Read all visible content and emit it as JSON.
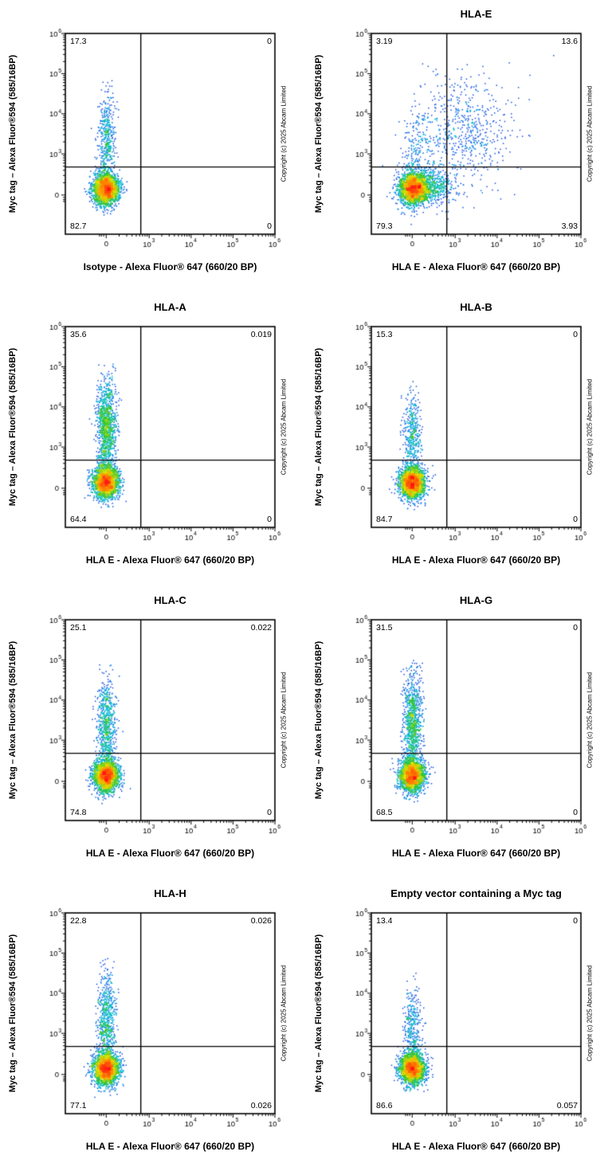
{
  "copyright": "Copyright (c) 2025 Abcam Limited",
  "axes": {
    "scale": "biexponential",
    "gate_x_u": 0.36,
    "gate_y_u": 0.335,
    "zero_u": 0.195,
    "tick_labels": [
      {
        "u": 0.195,
        "text": "0"
      },
      {
        "u": 0.4,
        "base": "10",
        "exp": "3"
      },
      {
        "u": 0.6,
        "base": "10",
        "exp": "4"
      },
      {
        "u": 0.8,
        "base": "10",
        "exp": "5"
      },
      {
        "u": 1.0,
        "base": "10",
        "exp": "6"
      }
    ]
  },
  "chart_data": [
    {
      "type": "scatter",
      "title": "",
      "xlabel": "Isotype - Alexa Fluor® 647 (660/20 BP)",
      "ylabel": "Myc tag – Alexa Fluor®594 (585/16BP)",
      "quadrants": {
        "ul": "17.3",
        "ur": "0",
        "ll": "82.7",
        "lr": "0"
      },
      "seed": 101,
      "populations": [
        {
          "n": 2300,
          "cx": 0.195,
          "cy": 0.225,
          "sx": 0.03,
          "sy": 0.04
        },
        {
          "n": 430,
          "cx": 0.197,
          "cy": 0.46,
          "sx": 0.021,
          "sy": 0.115,
          "ymin": 0.29,
          "ymax": 0.77
        }
      ]
    },
    {
      "type": "scatter",
      "title": "HLA-E",
      "xlabel": "HLA E - Alexa Fluor® 647 (660/20 BP)",
      "ylabel": "Myc tag – Alexa Fluor®594 (585/16BP)",
      "quadrants": {
        "ul": "3.19",
        "ur": "13.6",
        "ll": "79.3",
        "lr": "3.93"
      },
      "seed": 102,
      "populations": [
        {
          "n": 2100,
          "cx": 0.2,
          "cy": 0.225,
          "sx": 0.034,
          "sy": 0.04
        },
        {
          "n": 700,
          "cx": 0.27,
          "cy": 0.235,
          "sx": 0.065,
          "sy": 0.045
        },
        {
          "n": 660,
          "cx": 0.43,
          "cy": 0.52,
          "sx": 0.115,
          "sy": 0.135
        },
        {
          "n": 130,
          "cx": 0.21,
          "cy": 0.42,
          "sx": 0.03,
          "sy": 0.09,
          "ymin": 0.3,
          "ymax": 0.7
        }
      ],
      "extra": [
        [
          0.87,
          0.89
        ]
      ]
    },
    {
      "type": "scatter",
      "title": "HLA-A",
      "xlabel": "HLA E - Alexa Fluor® 647 (660/20 BP)",
      "ylabel": "Myc tag – Alexa Fluor®594 (585/16BP)",
      "quadrants": {
        "ul": "35.6",
        "ur": "0.019",
        "ll": "64.4",
        "lr": "0"
      },
      "seed": 103,
      "populations": [
        {
          "n": 2100,
          "cx": 0.195,
          "cy": 0.225,
          "sx": 0.03,
          "sy": 0.04
        },
        {
          "n": 1100,
          "cx": 0.197,
          "cy": 0.5,
          "sx": 0.022,
          "sy": 0.12,
          "ymin": 0.3,
          "ymax": 0.82
        }
      ]
    },
    {
      "type": "scatter",
      "title": "HLA-B",
      "xlabel": "HLA E - Alexa Fluor® 647 (660/20 BP)",
      "ylabel": "Myc tag – Alexa Fluor®594 (585/16BP)",
      "quadrants": {
        "ul": "15.3",
        "ur": "0",
        "ll": "84.7",
        "lr": "0"
      },
      "seed": 104,
      "populations": [
        {
          "n": 2300,
          "cx": 0.195,
          "cy": 0.225,
          "sx": 0.03,
          "sy": 0.04
        },
        {
          "n": 400,
          "cx": 0.197,
          "cy": 0.46,
          "sx": 0.021,
          "sy": 0.11,
          "ymin": 0.29,
          "ymax": 0.75
        }
      ]
    },
    {
      "type": "scatter",
      "title": "HLA-C",
      "xlabel": "HLA E - Alexa Fluor® 647 (660/20 BP)",
      "ylabel": "Myc tag – Alexa Fluor®594 (585/16BP)",
      "quadrants": {
        "ul": "25.1",
        "ur": "0.022",
        "ll": "74.8",
        "lr": "0"
      },
      "seed": 105,
      "populations": [
        {
          "n": 2250,
          "cx": 0.195,
          "cy": 0.225,
          "sx": 0.03,
          "sy": 0.04
        },
        {
          "n": 650,
          "cx": 0.197,
          "cy": 0.47,
          "sx": 0.022,
          "sy": 0.115,
          "ymin": 0.29,
          "ymax": 0.78
        }
      ]
    },
    {
      "type": "scatter",
      "title": "HLA-G",
      "xlabel": "HLA E - Alexa Fluor® 647 (660/20 BP)",
      "ylabel": "Myc tag – Alexa Fluor®594 (585/16BP)",
      "quadrants": {
        "ul": "31.5",
        "ur": "0",
        "ll": "68.5",
        "lr": "0"
      },
      "seed": 106,
      "populations": [
        {
          "n": 2150,
          "cx": 0.195,
          "cy": 0.225,
          "sx": 0.03,
          "sy": 0.04
        },
        {
          "n": 900,
          "cx": 0.197,
          "cy": 0.49,
          "sx": 0.022,
          "sy": 0.12,
          "ymin": 0.3,
          "ymax": 0.8
        }
      ]
    },
    {
      "type": "scatter",
      "title": "HLA-H",
      "xlabel": "HLA E - Alexa Fluor® 647 (660/20 BP)",
      "ylabel": "Myc tag – Alexa Fluor®594 (585/16BP)",
      "quadrants": {
        "ul": "22.8",
        "ur": "0.026",
        "ll": "77.1",
        "lr": "0.026"
      },
      "seed": 107,
      "populations": [
        {
          "n": 2300,
          "cx": 0.195,
          "cy": 0.225,
          "sx": 0.03,
          "sy": 0.04
        },
        {
          "n": 580,
          "cx": 0.197,
          "cy": 0.47,
          "sx": 0.022,
          "sy": 0.115,
          "ymin": 0.29,
          "ymax": 0.78
        }
      ]
    },
    {
      "type": "scatter",
      "title": "Empty vector containing a Myc tag",
      "xlabel": "HLA E - Alexa Fluor® 647 (660/20 BP)",
      "ylabel": "Myc tag – Alexa Fluor®594 (585/16BP)",
      "quadrants": {
        "ul": "13.4",
        "ur": "0",
        "ll": "86.6",
        "lr": "0.057"
      },
      "seed": 108,
      "populations": [
        {
          "n": 2300,
          "cx": 0.195,
          "cy": 0.225,
          "sx": 0.03,
          "sy": 0.04
        },
        {
          "n": 310,
          "cx": 0.197,
          "cy": 0.44,
          "sx": 0.021,
          "sy": 0.1,
          "ymin": 0.29,
          "ymax": 0.7
        }
      ]
    }
  ]
}
